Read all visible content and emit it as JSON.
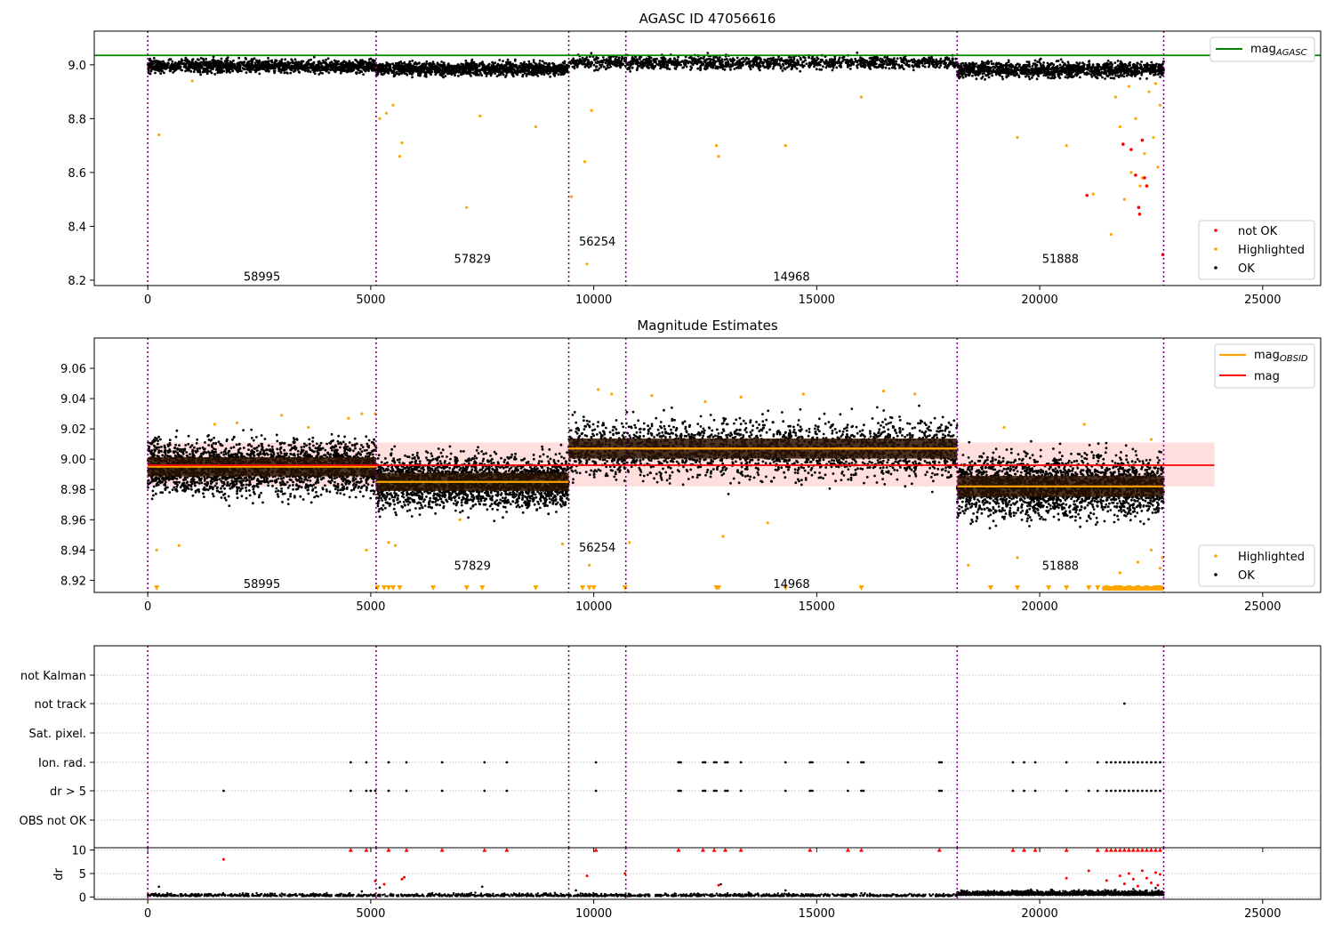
{
  "colors": {
    "ok": "#000000",
    "highlighted": "#ffa500",
    "not_ok": "#ff0000",
    "agasc_line": "#008000",
    "mag_line": "#ff0000",
    "obsid_line": "#ffa500",
    "obs_boundary": "#800080",
    "mag_band": "#ffd6d6"
  },
  "chart_data": [
    {
      "type": "scatter",
      "title": "AGASC ID 47056616",
      "xlim": [
        -1200,
        26300
      ],
      "ylim": [
        8.18,
        9.125
      ],
      "xticks": [
        "0",
        "5000",
        "10000",
        "15000",
        "20000",
        "25000"
      ],
      "yticks": [
        "8.2",
        "8.4",
        "8.6",
        "8.8",
        "9.0"
      ],
      "reference_line": {
        "name": "mag",
        "name_subscript": "AGASC",
        "y": 9.035,
        "x_range": [
          -1200,
          26300
        ]
      },
      "obs_boundaries": [
        0,
        5120,
        9440,
        10720,
        18150,
        22780
      ],
      "obsid_labels": [
        {
          "text": "58995",
          "x": 2560,
          "y": 8.215
        },
        {
          "text": "57829",
          "x": 7280,
          "y": 8.28
        },
        {
          "text": "56254",
          "x": 10080,
          "y": 8.345
        },
        {
          "text": "14968",
          "x": 14435,
          "y": 8.215
        },
        {
          "text": "51888",
          "x": 20465,
          "y": 8.28
        }
      ],
      "segments": [
        {
          "x": [
            0,
            5120
          ],
          "mean": 8.995,
          "spread": 0.012
        },
        {
          "x": [
            5120,
            9440
          ],
          "mean": 8.985,
          "spread": 0.012
        },
        {
          "x": [
            9440,
            18150
          ],
          "mean": 9.008,
          "spread": 0.012
        },
        {
          "x": [
            18150,
            22780
          ],
          "mean": 8.982,
          "spread": 0.014
        }
      ],
      "highlighted_points": [
        [
          250,
          8.74
        ],
        [
          1000,
          8.94
        ],
        [
          5200,
          8.8
        ],
        [
          5350,
          8.82
        ],
        [
          5500,
          8.85
        ],
        [
          5650,
          8.66
        ],
        [
          5700,
          8.71
        ],
        [
          7150,
          8.47
        ],
        [
          7450,
          8.81
        ],
        [
          8700,
          8.77
        ],
        [
          9500,
          8.51
        ],
        [
          9800,
          8.64
        ],
        [
          9850,
          8.26
        ],
        [
          9950,
          8.83
        ],
        [
          12750,
          8.7
        ],
        [
          12800,
          8.66
        ],
        [
          14300,
          8.7
        ],
        [
          16000,
          8.88
        ],
        [
          19500,
          8.73
        ],
        [
          20600,
          8.7
        ],
        [
          21200,
          8.52
        ],
        [
          21600,
          8.37
        ],
        [
          21800,
          8.77
        ],
        [
          21900,
          8.5
        ],
        [
          22050,
          8.6
        ],
        [
          22150,
          8.8
        ],
        [
          22250,
          8.55
        ],
        [
          22350,
          8.67
        ],
        [
          22450,
          8.9
        ],
        [
          22550,
          8.73
        ],
        [
          22650,
          8.62
        ],
        [
          22700,
          8.85
        ],
        [
          21700,
          8.88
        ],
        [
          22000,
          8.92
        ],
        [
          22300,
          8.58
        ],
        [
          22600,
          8.93
        ]
      ],
      "not_ok_points": [
        [
          21060,
          8.515
        ],
        [
          21870,
          8.705
        ],
        [
          22050,
          8.685
        ],
        [
          22150,
          8.59
        ],
        [
          22220,
          8.47
        ],
        [
          22240,
          8.445
        ],
        [
          22300,
          8.72
        ],
        [
          22350,
          8.58
        ],
        [
          22400,
          8.55
        ],
        [
          22760,
          8.295
        ]
      ],
      "legends": {
        "line": [
          {
            "name": "mag",
            "subscript": "AGASC"
          }
        ],
        "markers": [
          {
            "name": "not OK"
          },
          {
            "name": "Highlighted"
          },
          {
            "name": "OK"
          }
        ]
      }
    },
    {
      "type": "scatter",
      "title": "Magnitude Estimates",
      "xlim": [
        -1200,
        26300
      ],
      "ylim": [
        8.912,
        9.08
      ],
      "xticks": [
        "0",
        "5000",
        "10000",
        "15000",
        "20000",
        "25000"
      ],
      "yticks": [
        "8.92",
        "8.94",
        "8.96",
        "8.98",
        "9.00",
        "9.02",
        "9.04",
        "9.06"
      ],
      "mag_line": {
        "name": "mag",
        "y": 8.996,
        "band": [
          8.982,
          9.011
        ],
        "x_range": [
          0,
          23920
        ]
      },
      "obsid_means": [
        {
          "x": [
            0,
            5120
          ],
          "y": 8.995
        },
        {
          "x": [
            5120,
            9440
          ],
          "y": 8.985
        },
        {
          "x": [
            9440,
            18150
          ],
          "y": 9.007
        },
        {
          "x": [
            18150,
            22780
          ],
          "y": 8.982
        }
      ],
      "obs_boundaries": [
        0,
        5120,
        9440,
        10720,
        18150,
        22780
      ],
      "obsid_labels": [
        {
          "text": "58995",
          "x": 2560,
          "y": 8.918
        },
        {
          "text": "57829",
          "x": 7280,
          "y": 8.93
        },
        {
          "text": "56254",
          "x": 10080,
          "y": 8.942
        },
        {
          "text": "14968",
          "x": 14435,
          "y": 8.918
        },
        {
          "text": "51888",
          "x": 20465,
          "y": 8.93
        }
      ],
      "segments": [
        {
          "x": [
            0,
            5120
          ],
          "mean": 8.995,
          "spread": 0.009
        },
        {
          "x": [
            5120,
            9440
          ],
          "mean": 8.985,
          "spread": 0.0085
        },
        {
          "x": [
            9440,
            18150
          ],
          "mean": 9.007,
          "spread": 0.0095
        },
        {
          "x": [
            18150,
            22780
          ],
          "mean": 8.982,
          "spread": 0.01
        }
      ],
      "highlighted_points": [
        [
          200,
          8.94
        ],
        [
          700,
          8.943
        ],
        [
          4900,
          8.94
        ],
        [
          5400,
          8.945
        ],
        [
          5550,
          8.943
        ],
        [
          7000,
          8.96
        ],
        [
          9300,
          8.944
        ],
        [
          9900,
          8.93
        ],
        [
          10800,
          8.945
        ],
        [
          12900,
          8.949
        ],
        [
          13900,
          8.958
        ],
        [
          18400,
          8.93
        ],
        [
          19500,
          8.935
        ],
        [
          21800,
          8.925
        ],
        [
          22200,
          8.932
        ],
        [
          22500,
          8.94
        ],
        [
          22700,
          8.928
        ],
        [
          22750,
          8.935
        ],
        [
          1500,
          9.023
        ],
        [
          2000,
          9.024
        ],
        [
          3000,
          9.029
        ],
        [
          3600,
          9.021
        ],
        [
          4500,
          9.027
        ],
        [
          4800,
          9.03
        ],
        [
          5100,
          9.03
        ],
        [
          10100,
          9.046
        ],
        [
          10400,
          9.043
        ],
        [
          11300,
          9.042
        ],
        [
          12500,
          9.038
        ],
        [
          13300,
          9.041
        ],
        [
          14700,
          9.043
        ],
        [
          16500,
          9.045
        ],
        [
          17200,
          9.043
        ],
        [
          19200,
          9.021
        ],
        [
          21000,
          9.023
        ],
        [
          22500,
          9.013
        ]
      ],
      "arrow_points": [
        200,
        5150,
        5300,
        5400,
        5500,
        5650,
        6400,
        7150,
        7500,
        8700,
        9750,
        9900,
        10000,
        10700,
        12750,
        12800,
        14300,
        16000,
        18900,
        19500,
        20200,
        20600,
        21100,
        21300,
        21500,
        21700,
        21800,
        22000,
        22200,
        22400,
        22600,
        22700
      ],
      "legends": {
        "line": [
          {
            "name": "mag",
            "subscript": "OBSID"
          },
          {
            "name": "mag"
          }
        ],
        "markers": [
          {
            "name": "Highlighted"
          },
          {
            "name": "OK"
          }
        ]
      }
    },
    {
      "type": "scatter",
      "title": "",
      "xlim": [
        -1200,
        26300
      ],
      "yticks": [
        "not Kalman",
        "not track",
        "Sat. pixel.",
        "Ion. rad.",
        "dr > 5",
        "OBS not OK"
      ],
      "obs_boundaries": [
        0,
        5120,
        9440,
        10720,
        18150,
        22780
      ],
      "flag_points": {
        "not Kalman": [],
        "not track": [
          21900
        ],
        "Sat. pixel.": [],
        "Ion. rad.": [
          4550,
          4900,
          5400,
          5800,
          6600,
          7550,
          8050,
          10050,
          11900,
          11950,
          12450,
          12500,
          12700,
          12750,
          12950,
          13000,
          13300,
          14300,
          14850,
          14900,
          15700,
          16000,
          16050,
          17750,
          17800,
          19400,
          19650,
          19900,
          20600,
          21300,
          21500,
          21600,
          21700,
          21800,
          21900,
          22000,
          22100,
          22200,
          22300,
          22400,
          22500,
          22600,
          22700
        ],
        "dr > 5": [
          1700,
          4550,
          4900,
          5000,
          5100,
          5400,
          5800,
          6600,
          7550,
          8050,
          10050,
          11900,
          11950,
          12450,
          12500,
          12700,
          12750,
          12950,
          13000,
          13300,
          14300,
          14850,
          14900,
          15700,
          16000,
          16050,
          17750,
          17800,
          19400,
          19650,
          19900,
          20600,
          21100,
          21300,
          21500,
          21600,
          21700,
          21800,
          21900,
          22000,
          22100,
          22200,
          22300,
          22400,
          22500,
          22600,
          22700
        ],
        "OBS not OK": []
      }
    },
    {
      "type": "scatter",
      "title": "",
      "xlim": [
        -1200,
        26300
      ],
      "ylim": [
        -0.5,
        10.5
      ],
      "ylabel": "dr",
      "xticks": [
        "0",
        "5000",
        "10000",
        "15000",
        "20000",
        "25000"
      ],
      "yticks": [
        "0",
        "5",
        "10"
      ],
      "obs_boundaries": [
        0,
        5120,
        9440,
        10720,
        18150,
        22780
      ],
      "capped_points": [
        4550,
        4900,
        5400,
        5800,
        6600,
        7550,
        8050,
        10050,
        11900,
        12450,
        12700,
        12950,
        13300,
        14850,
        15700,
        16000,
        17750,
        19400,
        19650,
        19900,
        20600,
        21300,
        21500,
        21600,
        21700,
        21800,
        21900,
        22000,
        22100,
        22200,
        22300,
        22400,
        22500,
        22600,
        22700
      ],
      "red_points": [
        [
          1700,
          8
        ],
        [
          5100,
          3.4
        ],
        [
          5300,
          2.7
        ],
        [
          5700,
          3.8
        ],
        [
          5750,
          4.2
        ],
        [
          9850,
          4.5
        ],
        [
          10700,
          5
        ],
        [
          12800,
          2.5
        ],
        [
          20600,
          4
        ],
        [
          21100,
          5.6
        ],
        [
          21500,
          3.5
        ],
        [
          21800,
          4.5
        ],
        [
          21900,
          2.8
        ],
        [
          22000,
          5
        ],
        [
          22100,
          3.8
        ],
        [
          22200,
          2.3
        ],
        [
          22300,
          5.6
        ],
        [
          22400,
          4
        ],
        [
          22500,
          3
        ],
        [
          22600,
          5.2
        ],
        [
          22650,
          2.5
        ],
        [
          22700,
          4.8
        ]
      ],
      "ok_points": [
        [
          250,
          2.2
        ],
        [
          1700,
          0.5
        ],
        [
          4800,
          1.2
        ],
        [
          5200,
          2
        ],
        [
          7500,
          2.2
        ],
        [
          9600,
          1.4
        ],
        [
          12850,
          2.7
        ],
        [
          14300,
          1.4
        ],
        [
          16000,
          0.8
        ],
        [
          20300,
          1.1
        ],
        [
          21700,
          1.5
        ],
        [
          22100,
          1.7
        ],
        [
          22400,
          1.2
        ],
        [
          22600,
          1.9
        ]
      ],
      "baseline_segments": [
        {
          "x": [
            0,
            18150
          ],
          "mean": 0.35,
          "spread": 0.45
        },
        {
          "x": [
            18150,
            22780
          ],
          "mean": 0.6,
          "spread": 0.7
        }
      ]
    }
  ]
}
